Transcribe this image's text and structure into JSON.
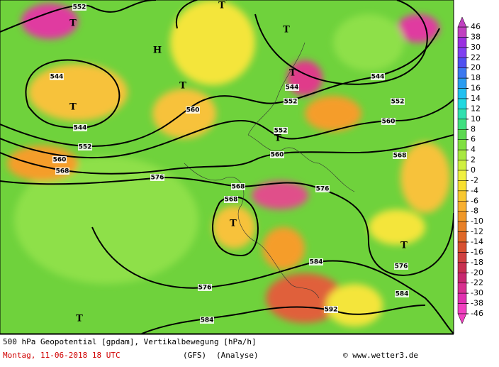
{
  "map": {
    "contour_labels": [
      552,
      544,
      544,
      552,
      560,
      568,
      576,
      560,
      544,
      552,
      552,
      560,
      544,
      552,
      560,
      568,
      568,
      568,
      576,
      576,
      584,
      584,
      576,
      584,
      592
    ],
    "markers": [
      "T",
      "T",
      "T",
      "T",
      "T",
      "T",
      "T",
      "T",
      "T",
      "T",
      "H"
    ]
  },
  "legend": {
    "levels": [
      46,
      38,
      30,
      22,
      20,
      18,
      16,
      14,
      12,
      10,
      8,
      6,
      4,
      2,
      0,
      -2,
      -4,
      -6,
      -8,
      -10,
      -12,
      -14,
      -16,
      -18,
      -20,
      -22,
      -30,
      -38,
      -46
    ],
    "colors": [
      "#c040c0",
      "#9a30e0",
      "#8040f0",
      "#5050f0",
      "#3c78f0",
      "#2a9cf0",
      "#20c0f0",
      "#20d8e0",
      "#30e0b0",
      "#40e080",
      "#5cd850",
      "#80e040",
      "#a8e840",
      "#d0f040",
      "#f0f040",
      "#f8e030",
      "#f8c830",
      "#f8b030",
      "#f09828",
      "#e88028",
      "#e06828",
      "#d85030",
      "#d04040",
      "#c83050",
      "#c82870",
      "#d83090",
      "#e030b0",
      "#f040c0"
    ]
  },
  "footer": {
    "title": "500 hPa Geopotential [gpdam], Vertikalbewegung [hPa/h]",
    "date": "Montag, 11-06-2018  18 UTC",
    "model": "(GFS)",
    "run": "(Analyse)",
    "copyright": "© www.wetter3.de"
  }
}
